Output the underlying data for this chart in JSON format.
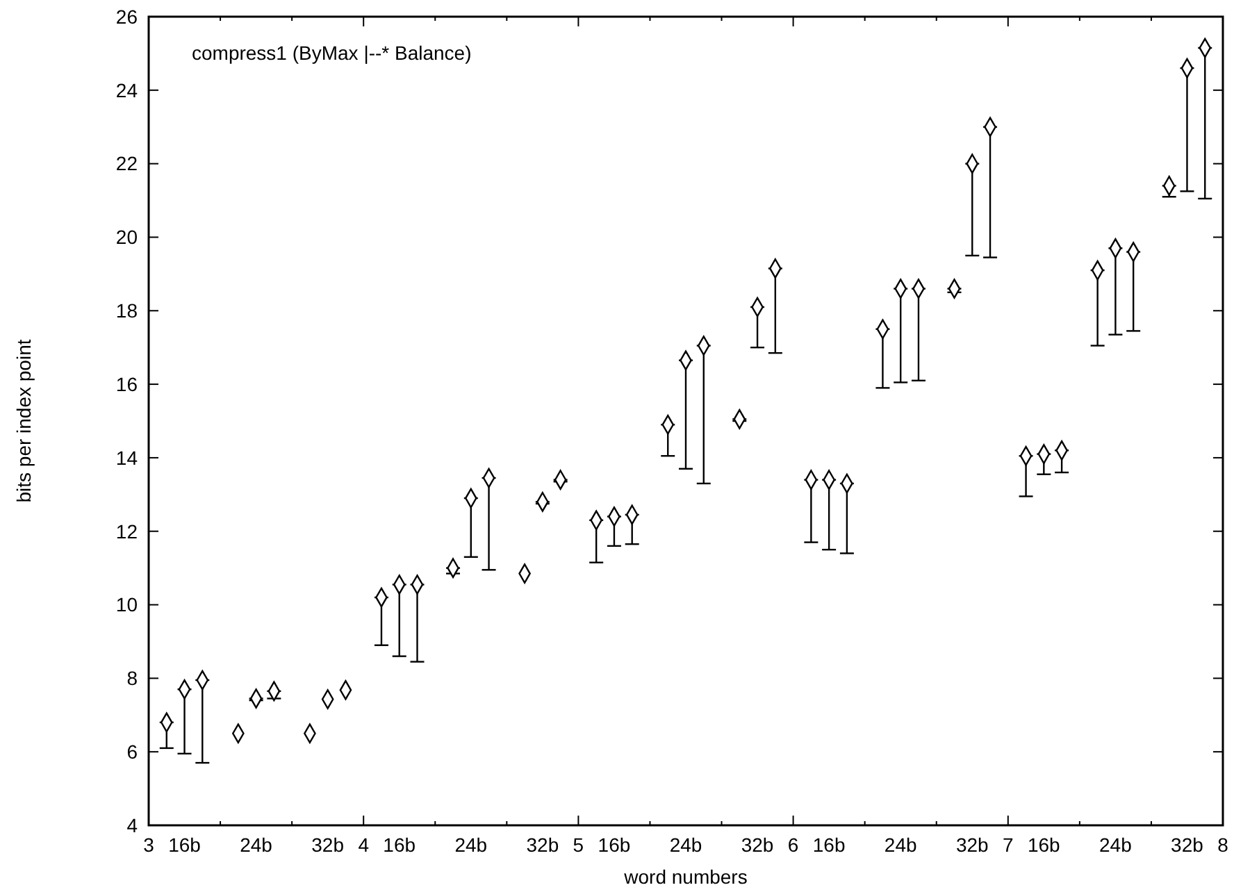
{
  "chart_data": {
    "type": "scatter",
    "title": "compress1 (ByMax |--* Balance)",
    "xlabel": "word numbers",
    "ylabel": "bits per index point",
    "categories": [
      "3",
      null,
      "16b",
      null,
      null,
      null,
      "24b",
      null,
      null,
      null,
      "32b",
      null,
      "4",
      null,
      "16b",
      null,
      null,
      null,
      "24b",
      null,
      null,
      null,
      "32b",
      null,
      "5",
      null,
      "16b",
      null,
      null,
      null,
      "24b",
      null,
      null,
      null,
      "32b",
      null,
      "6",
      null,
      "16b",
      null,
      null,
      null,
      "24b",
      null,
      null,
      null,
      "32b",
      null,
      "7",
      null,
      "16b",
      null,
      null,
      null,
      "24b",
      null,
      null,
      null,
      "32b",
      null,
      "8"
    ],
    "ylim": [
      4,
      26
    ],
    "yticks": [
      4,
      6,
      8,
      10,
      12,
      14,
      16,
      18,
      20,
      22,
      24,
      26
    ],
    "marker": "diamond",
    "series": [
      {
        "color": "#000000",
        "values": [
          null,
          6.8,
          7.7,
          7.95,
          null,
          6.5,
          7.45,
          7.65,
          null,
          6.5,
          7.43,
          7.68,
          null,
          10.2,
          10.55,
          10.55,
          null,
          11.0,
          12.9,
          13.45,
          null,
          10.85,
          12.8,
          13.4,
          null,
          12.3,
          12.4,
          12.45,
          null,
          14.9,
          16.65,
          17.05,
          null,
          15.05,
          18.1,
          19.15,
          null,
          13.4,
          13.4,
          13.3,
          null,
          17.5,
          18.6,
          18.6,
          null,
          18.6,
          22.0,
          23.0,
          null,
          14.05,
          14.1,
          14.2,
          null,
          19.1,
          19.7,
          19.6,
          null,
          21.4,
          24.6,
          25.15,
          null
        ],
        "errors": [
          null,
          [
            6.1,
            6.8
          ],
          [
            5.95,
            7.7
          ],
          [
            5.7,
            7.95
          ],
          null,
          null,
          [
            7.4,
            7.45
          ],
          [
            7.45,
            7.65
          ],
          null,
          null,
          null,
          null,
          null,
          [
            8.9,
            10.2
          ],
          [
            8.6,
            10.55
          ],
          [
            8.45,
            10.55
          ],
          null,
          [
            10.85,
            11.0
          ],
          [
            11.3,
            12.9
          ],
          [
            10.95,
            13.45
          ],
          null,
          null,
          [
            12.75,
            12.8
          ],
          [
            13.35,
            13.4
          ],
          null,
          [
            11.15,
            12.3
          ],
          [
            11.6,
            12.4
          ],
          [
            11.65,
            12.45
          ],
          null,
          [
            14.05,
            14.9
          ],
          [
            13.7,
            16.65
          ],
          [
            13.3,
            17.05
          ],
          null,
          [
            15.0,
            15.05
          ],
          [
            17.0,
            18.1
          ],
          [
            16.85,
            19.15
          ],
          null,
          [
            11.7,
            13.4
          ],
          [
            11.5,
            13.4
          ],
          [
            11.4,
            13.3
          ],
          null,
          [
            15.9,
            17.5
          ],
          [
            16.05,
            18.6
          ],
          [
            16.1,
            18.6
          ],
          null,
          [
            18.5,
            18.6
          ],
          [
            19.5,
            22.0
          ],
          [
            19.45,
            23.0
          ],
          null,
          [
            12.95,
            14.05
          ],
          [
            13.55,
            14.1
          ],
          [
            13.6,
            14.2
          ],
          null,
          [
            17.05,
            19.1
          ],
          [
            17.35,
            19.7
          ],
          [
            17.45,
            19.6
          ],
          null,
          [
            21.1,
            21.4
          ],
          [
            21.25,
            24.6
          ],
          [
            21.05,
            25.15
          ],
          null
        ]
      }
    ]
  }
}
